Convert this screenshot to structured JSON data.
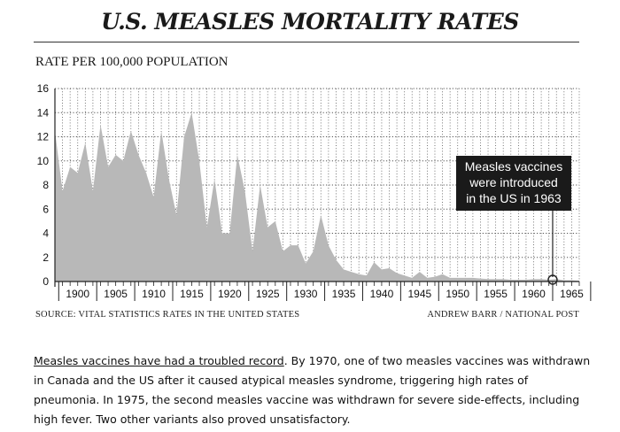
{
  "chart_data": {
    "type": "area",
    "title": "U.S. MEASLES MORTALITY RATES",
    "ylabel": "RATE PER 100,000 POPULATION",
    "xlabel": "",
    "xlim": [
      1897,
      1966
    ],
    "ylim": [
      0,
      16
    ],
    "yticks": [
      0,
      2,
      4,
      6,
      8,
      10,
      12,
      14,
      16
    ],
    "xticks": [
      1900,
      1905,
      1910,
      1915,
      1920,
      1925,
      1930,
      1935,
      1940,
      1945,
      1950,
      1955,
      1960,
      1965
    ],
    "grid": true,
    "x": [
      1897,
      1898,
      1899,
      1900,
      1901,
      1902,
      1903,
      1904,
      1905,
      1906,
      1907,
      1908,
      1909,
      1910,
      1911,
      1912,
      1913,
      1914,
      1915,
      1916,
      1917,
      1918,
      1919,
      1920,
      1921,
      1922,
      1923,
      1924,
      1925,
      1926,
      1927,
      1928,
      1929,
      1930,
      1931,
      1932,
      1933,
      1934,
      1935,
      1936,
      1937,
      1938,
      1939,
      1940,
      1941,
      1942,
      1943,
      1944,
      1945,
      1946,
      1947,
      1948,
      1949,
      1950,
      1951,
      1952,
      1953,
      1954,
      1955,
      1956,
      1957,
      1958,
      1959,
      1960,
      1961,
      1962,
      1963,
      1964,
      1965,
      1966
    ],
    "values": [
      12.5,
      7.5,
      9.5,
      9.0,
      11.5,
      7.5,
      13.0,
      9.5,
      10.5,
      10.0,
      12.5,
      10.5,
      9.0,
      7.0,
      12.5,
      8.5,
      5.5,
      12.0,
      14.0,
      10.0,
      4.5,
      8.5,
      4.0,
      4.0,
      10.5,
      7.5,
      2.5,
      8.0,
      4.5,
      5.0,
      2.5,
      3.0,
      3.0,
      1.5,
      2.5,
      5.5,
      3.0,
      1.8,
      1.0,
      0.8,
      0.6,
      0.5,
      1.6,
      1.0,
      1.1,
      0.7,
      0.5,
      0.3,
      0.8,
      0.3,
      0.4,
      0.6,
      0.3,
      0.3,
      0.3,
      0.3,
      0.25,
      0.2,
      0.2,
      0.2,
      0.15,
      0.15,
      0.15,
      0.2,
      0.2,
      0.15,
      0.2,
      0.1,
      0.1,
      0.05
    ],
    "annotation": {
      "lines": [
        "Measles vaccines",
        "were introduced",
        "in the US in 1963"
      ],
      "x": 1963
    }
  },
  "source_text": "SOURCE: VITAL STATISTICS RATES IN THE UNITED STATES",
  "credit_text": "ANDREW BARR / NATIONAL POST",
  "caption": {
    "link_text": "Measles vaccines have had a troubled record",
    "body": ". By 1970, one of two measles vaccines was withdrawn in Canada and the US after it caused atypical measles syndrome, triggering high rates of pneumonia. In 1975, the second measles vaccine was withdrawn for severe side-effects, including high fever. Two other variants also proved unsatisfactory."
  },
  "colors": {
    "area": "#b8b8b8",
    "grid": "#555555",
    "annotation_bg": "#1a1a1a"
  }
}
